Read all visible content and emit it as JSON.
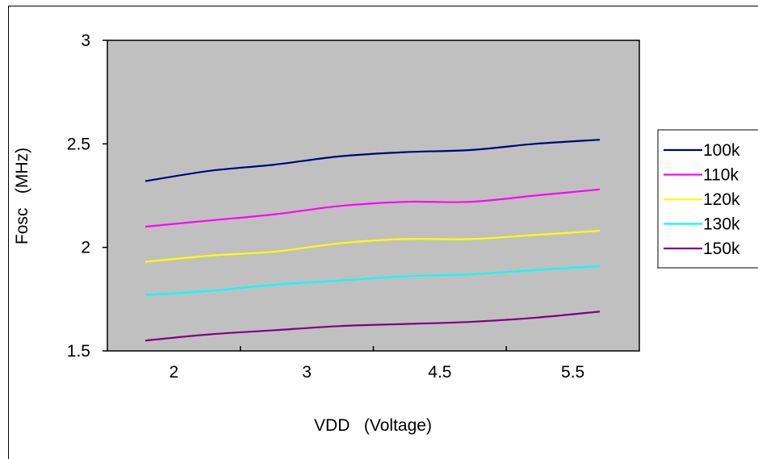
{
  "chart_data": {
    "type": "line",
    "title": "",
    "xlabel": "VDD   (Voltage)",
    "ylabel": "Fosc   (MHz)",
    "categories": [
      "2",
      "3",
      "4.5",
      "5.5"
    ],
    "x": [
      2.0,
      2.5,
      3.0,
      3.5,
      4.0,
      4.5,
      5.0,
      5.5
    ],
    "ylim": [
      1.5,
      3.0
    ],
    "yticks": [
      "1.5",
      "2",
      "2.5",
      "3"
    ],
    "grid": false,
    "plot_background": "#c0c0c0",
    "legend_position": "right",
    "series": [
      {
        "name": "100k",
        "color": "#000080",
        "values": [
          2.32,
          2.37,
          2.4,
          2.44,
          2.46,
          2.47,
          2.5,
          2.52
        ]
      },
      {
        "name": "110k",
        "color": "#ff00ff",
        "values": [
          2.1,
          2.13,
          2.16,
          2.2,
          2.22,
          2.22,
          2.25,
          2.28
        ]
      },
      {
        "name": "120k",
        "color": "#ffff00",
        "values": [
          1.93,
          1.96,
          1.98,
          2.02,
          2.04,
          2.04,
          2.06,
          2.08
        ]
      },
      {
        "name": "130k",
        "color": "#00ffff",
        "values": [
          1.77,
          1.79,
          1.82,
          1.84,
          1.86,
          1.87,
          1.89,
          1.91
        ]
      },
      {
        "name": "150k",
        "color": "#800080",
        "values": [
          1.55,
          1.58,
          1.6,
          1.62,
          1.63,
          1.64,
          1.66,
          1.69
        ]
      }
    ]
  }
}
